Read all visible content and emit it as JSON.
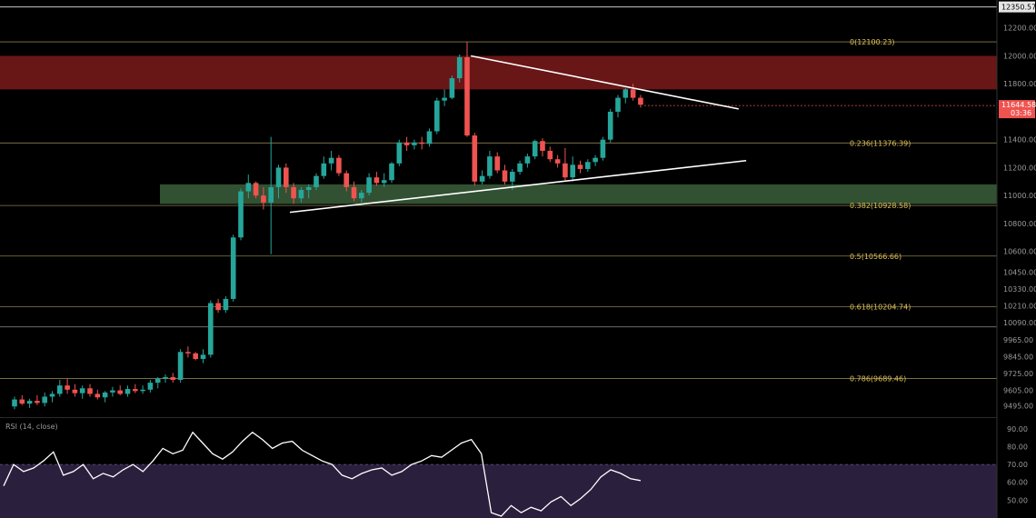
{
  "colors": {
    "background": "#000000",
    "up_candle": "#26a69a",
    "down_candle": "#ef5350",
    "fib_line": "#8a7d4a",
    "fib_label": "#e0c25a",
    "resistance_zone": "#8b1e1e",
    "support_zone": "#3b5e3b",
    "trendline": "#ffffff",
    "rsi_line": "#ffffff",
    "rsi_band": "#2a1f3d"
  },
  "chart_data": [
    {
      "type": "candlestick",
      "yscale": "linear",
      "ylim": [
        9420,
        12400
      ],
      "grid": false,
      "yticks": [
        "12200.00",
        "12000.00",
        "11800.00",
        "11400.00",
        "11200.00",
        "11000.00",
        "10800.00",
        "10600.00",
        "10450.00",
        "10330.00",
        "10210.00",
        "10090.00",
        "9965.00",
        "9845.00",
        "9725.00",
        "9605.00",
        "9495.00"
      ],
      "top_line_label": "12350.57",
      "price_tag": {
        "price": 11644.58,
        "label": "11644.58",
        "countdown": "03:36"
      },
      "fib_levels": [
        {
          "label": "0(12100.23)",
          "value": 12100.23
        },
        {
          "label": "0.236(11376.39)",
          "value": 11376.39
        },
        {
          "label": "0.382(10928.58)",
          "value": 10928.58
        },
        {
          "label": "0.5(10566.66)",
          "value": 10566.66
        },
        {
          "label": "0.618(10204.74)",
          "value": 10204.74
        },
        {
          "label": "0.786(9689.46)",
          "value": 9689.46
        }
      ],
      "extra_lines": [
        12350.57,
        10060
      ],
      "zones": [
        {
          "name": "resistance",
          "from": 11760,
          "to": 12000
        },
        {
          "name": "support",
          "from": 10940,
          "to": 11080
        }
      ],
      "trendlines": [
        {
          "from": {
            "i": 60.5,
            "price": 12000
          },
          "to": {
            "i": 96,
            "price": 11620
          }
        },
        {
          "from": {
            "i": 36.5,
            "price": 10880
          },
          "to": {
            "i": 97,
            "price": 11250
          }
        }
      ],
      "candles": [
        {
          "o": 9490,
          "h": 9560,
          "l": 9470,
          "c": 9540
        },
        {
          "o": 9540,
          "h": 9570,
          "l": 9500,
          "c": 9510
        },
        {
          "o": 9510,
          "h": 9545,
          "l": 9480,
          "c": 9530
        },
        {
          "o": 9530,
          "h": 9570,
          "l": 9500,
          "c": 9515
        },
        {
          "o": 9515,
          "h": 9590,
          "l": 9490,
          "c": 9560
        },
        {
          "o": 9560,
          "h": 9600,
          "l": 9520,
          "c": 9580
        },
        {
          "o": 9580,
          "h": 9680,
          "l": 9560,
          "c": 9640
        },
        {
          "o": 9640,
          "h": 9690,
          "l": 9580,
          "c": 9610
        },
        {
          "o": 9610,
          "h": 9650,
          "l": 9560,
          "c": 9585
        },
        {
          "o": 9585,
          "h": 9640,
          "l": 9545,
          "c": 9620
        },
        {
          "o": 9620,
          "h": 9650,
          "l": 9560,
          "c": 9580
        },
        {
          "o": 9580,
          "h": 9610,
          "l": 9540,
          "c": 9555
        },
        {
          "o": 9555,
          "h": 9600,
          "l": 9520,
          "c": 9590
        },
        {
          "o": 9590,
          "h": 9630,
          "l": 9560,
          "c": 9605
        },
        {
          "o": 9605,
          "h": 9640,
          "l": 9570,
          "c": 9580
        },
        {
          "o": 9580,
          "h": 9640,
          "l": 9560,
          "c": 9615
        },
        {
          "o": 9615,
          "h": 9650,
          "l": 9585,
          "c": 9600
        },
        {
          "o": 9600,
          "h": 9640,
          "l": 9580,
          "c": 9610
        },
        {
          "o": 9610,
          "h": 9680,
          "l": 9590,
          "c": 9660
        },
        {
          "o": 9660,
          "h": 9700,
          "l": 9620,
          "c": 9690
        },
        {
          "o": 9690,
          "h": 9720,
          "l": 9660,
          "c": 9700
        },
        {
          "o": 9700,
          "h": 9730,
          "l": 9660,
          "c": 9680
        },
        {
          "o": 9680,
          "h": 9900,
          "l": 9660,
          "c": 9880
        },
        {
          "o": 9880,
          "h": 9920,
          "l": 9840,
          "c": 9870
        },
        {
          "o": 9870,
          "h": 9880,
          "l": 9820,
          "c": 9830
        },
        {
          "o": 9830,
          "h": 9900,
          "l": 9800,
          "c": 9860
        },
        {
          "o": 9860,
          "h": 10250,
          "l": 9840,
          "c": 10230
        },
        {
          "o": 10230,
          "h": 10260,
          "l": 10160,
          "c": 10180
        },
        {
          "o": 10180,
          "h": 10280,
          "l": 10160,
          "c": 10260
        },
        {
          "o": 10260,
          "h": 10720,
          "l": 10240,
          "c": 10700
        },
        {
          "o": 10700,
          "h": 11050,
          "l": 10680,
          "c": 11030
        },
        {
          "o": 11030,
          "h": 11150,
          "l": 10980,
          "c": 11090
        },
        {
          "o": 11090,
          "h": 11100,
          "l": 10980,
          "c": 11000
        },
        {
          "o": 11000,
          "h": 11060,
          "l": 10900,
          "c": 10950
        },
        {
          "o": 10950,
          "h": 11420,
          "l": 10580,
          "c": 11060
        },
        {
          "o": 11060,
          "h": 11220,
          "l": 10980,
          "c": 11200
        },
        {
          "o": 11200,
          "h": 11230,
          "l": 11020,
          "c": 11060
        },
        {
          "o": 11060,
          "h": 11090,
          "l": 10940,
          "c": 10980
        },
        {
          "o": 10980,
          "h": 11060,
          "l": 10950,
          "c": 11040
        },
        {
          "o": 11040,
          "h": 11080,
          "l": 10980,
          "c": 11060
        },
        {
          "o": 11060,
          "h": 11160,
          "l": 11040,
          "c": 11140
        },
        {
          "o": 11140,
          "h": 11280,
          "l": 11120,
          "c": 11230
        },
        {
          "o": 11230,
          "h": 11320,
          "l": 11180,
          "c": 11270
        },
        {
          "o": 11270,
          "h": 11290,
          "l": 11140,
          "c": 11160
        },
        {
          "o": 11160,
          "h": 11180,
          "l": 11030,
          "c": 11060
        },
        {
          "o": 11060,
          "h": 11100,
          "l": 10960,
          "c": 10980
        },
        {
          "o": 10980,
          "h": 11040,
          "l": 10950,
          "c": 11020
        },
        {
          "o": 11020,
          "h": 11160,
          "l": 11000,
          "c": 11130
        },
        {
          "o": 11130,
          "h": 11170,
          "l": 11070,
          "c": 11090
        },
        {
          "o": 11090,
          "h": 11160,
          "l": 11060,
          "c": 11110
        },
        {
          "o": 11110,
          "h": 11240,
          "l": 11090,
          "c": 11230
        },
        {
          "o": 11230,
          "h": 11400,
          "l": 11210,
          "c": 11380
        },
        {
          "o": 11380,
          "h": 11420,
          "l": 11320,
          "c": 11360
        },
        {
          "o": 11360,
          "h": 11400,
          "l": 11330,
          "c": 11380
        },
        {
          "o": 11380,
          "h": 11420,
          "l": 11330,
          "c": 11370
        },
        {
          "o": 11370,
          "h": 11480,
          "l": 11350,
          "c": 11460
        },
        {
          "o": 11460,
          "h": 11700,
          "l": 11440,
          "c": 11680
        },
        {
          "o": 11680,
          "h": 11760,
          "l": 11640,
          "c": 11700
        },
        {
          "o": 11700,
          "h": 11860,
          "l": 11690,
          "c": 11840
        },
        {
          "o": 11840,
          "h": 12010,
          "l": 11810,
          "c": 11990
        },
        {
          "o": 11990,
          "h": 12100,
          "l": 11420,
          "c": 11430
        },
        {
          "o": 11430,
          "h": 11450,
          "l": 11070,
          "c": 11100
        },
        {
          "o": 11100,
          "h": 11180,
          "l": 11080,
          "c": 11140
        },
        {
          "o": 11140,
          "h": 11320,
          "l": 11120,
          "c": 11280
        },
        {
          "o": 11280,
          "h": 11310,
          "l": 11160,
          "c": 11180
        },
        {
          "o": 11180,
          "h": 11220,
          "l": 11080,
          "c": 11100
        },
        {
          "o": 11100,
          "h": 11190,
          "l": 11040,
          "c": 11170
        },
        {
          "o": 11170,
          "h": 11250,
          "l": 11150,
          "c": 11230
        },
        {
          "o": 11230,
          "h": 11300,
          "l": 11200,
          "c": 11280
        },
        {
          "o": 11280,
          "h": 11400,
          "l": 11260,
          "c": 11390
        },
        {
          "o": 11390,
          "h": 11410,
          "l": 11280,
          "c": 11320
        },
        {
          "o": 11320,
          "h": 11350,
          "l": 11240,
          "c": 11260
        },
        {
          "o": 11260,
          "h": 11290,
          "l": 11200,
          "c": 11230
        },
        {
          "o": 11230,
          "h": 11340,
          "l": 11110,
          "c": 11130
        },
        {
          "o": 11130,
          "h": 11280,
          "l": 11100,
          "c": 11220
        },
        {
          "o": 11220,
          "h": 11250,
          "l": 11160,
          "c": 11190
        },
        {
          "o": 11190,
          "h": 11260,
          "l": 11170,
          "c": 11240
        },
        {
          "o": 11240,
          "h": 11290,
          "l": 11210,
          "c": 11270
        },
        {
          "o": 11270,
          "h": 11420,
          "l": 11250,
          "c": 11400
        },
        {
          "o": 11400,
          "h": 11620,
          "l": 11380,
          "c": 11600
        },
        {
          "o": 11600,
          "h": 11720,
          "l": 11560,
          "c": 11700
        },
        {
          "o": 11700,
          "h": 11770,
          "l": 11660,
          "c": 11760
        },
        {
          "o": 11760,
          "h": 11800,
          "l": 11680,
          "c": 11700
        },
        {
          "o": 11700,
          "h": 11720,
          "l": 11630,
          "c": 11650
        }
      ]
    },
    {
      "type": "line",
      "title": "RSI (14, close)",
      "ylim": [
        40,
        95
      ],
      "band": [
        30,
        70
      ],
      "yticks": [
        "90.00",
        "80.00",
        "70.00",
        "60.00",
        "50.00"
      ],
      "values": [
        58,
        70,
        66,
        68,
        72,
        77,
        64,
        66,
        70,
        62,
        65,
        63,
        67,
        70,
        66,
        72,
        79,
        76,
        78,
        88,
        82,
        76,
        73,
        77,
        83,
        88,
        84,
        79,
        82,
        83,
        78,
        75,
        72,
        70,
        64,
        62,
        65,
        67,
        68,
        64,
        66,
        70,
        72,
        75,
        74,
        78,
        82,
        84,
        76,
        43,
        41,
        47,
        43,
        46,
        44,
        49,
        52,
        47,
        51,
        56,
        63,
        67,
        65,
        62,
        61
      ]
    }
  ]
}
